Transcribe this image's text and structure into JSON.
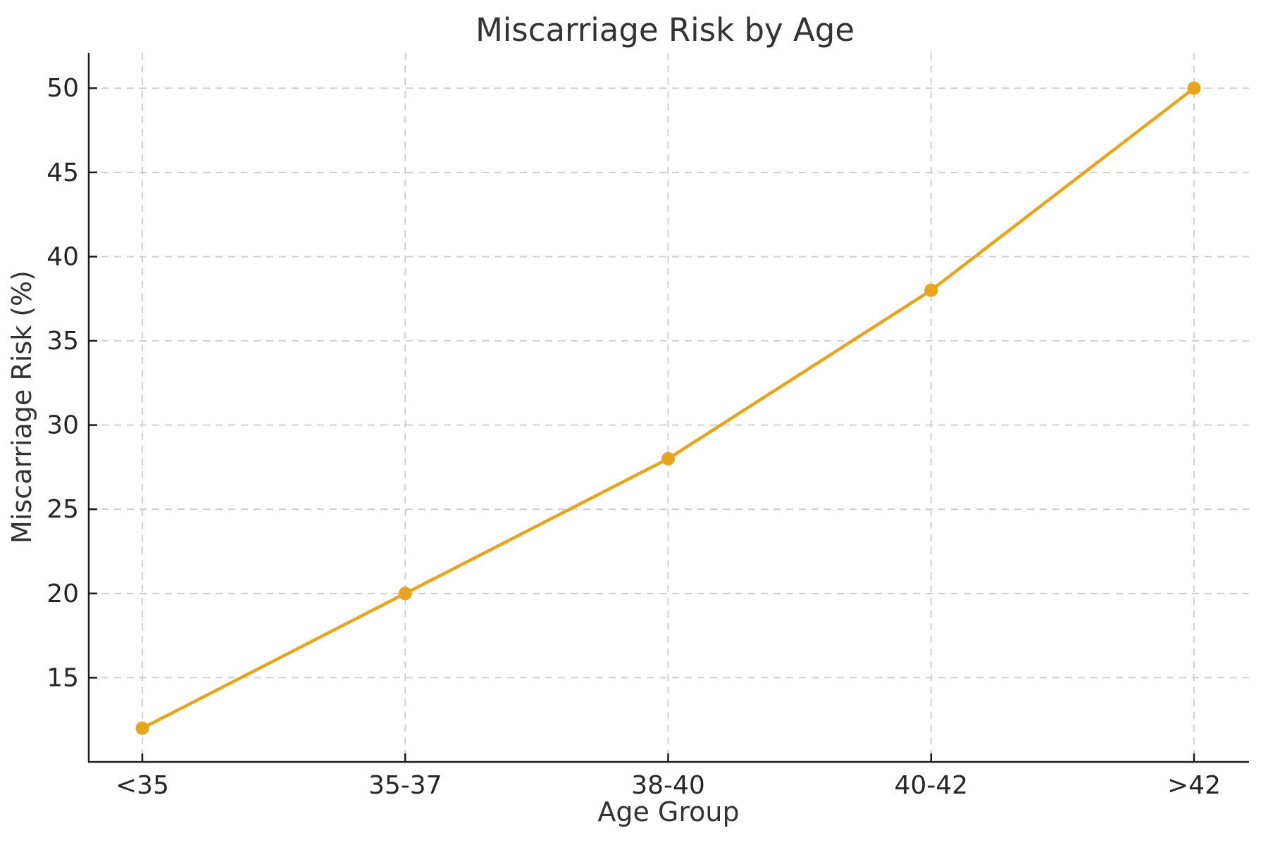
{
  "chart_data": {
    "type": "line",
    "title": "Miscarriage Risk by Age",
    "xlabel": "Age Group",
    "ylabel": "Miscarriage Risk (%)",
    "categories": [
      "<35",
      "35-37",
      "38-40",
      "40-42",
      ">42"
    ],
    "series": [
      {
        "name": "Miscarriage Risk (%)",
        "values": [
          12,
          20,
          28,
          38,
          50
        ]
      }
    ],
    "ylim": [
      10,
      52.1
    ],
    "yticks": [
      15,
      20,
      25,
      30,
      35,
      40,
      45,
      50
    ],
    "grid": {
      "visible": true,
      "style": "dashed",
      "axis": "both"
    },
    "legend": "none",
    "marker": "circle",
    "colors": {
      "line": "#E8A41A",
      "marker": "#E8A41A",
      "grid": "#CCCCCC",
      "spine": "#1A1A1A",
      "text": "#333333",
      "background": "#FFFFFF"
    }
  }
}
